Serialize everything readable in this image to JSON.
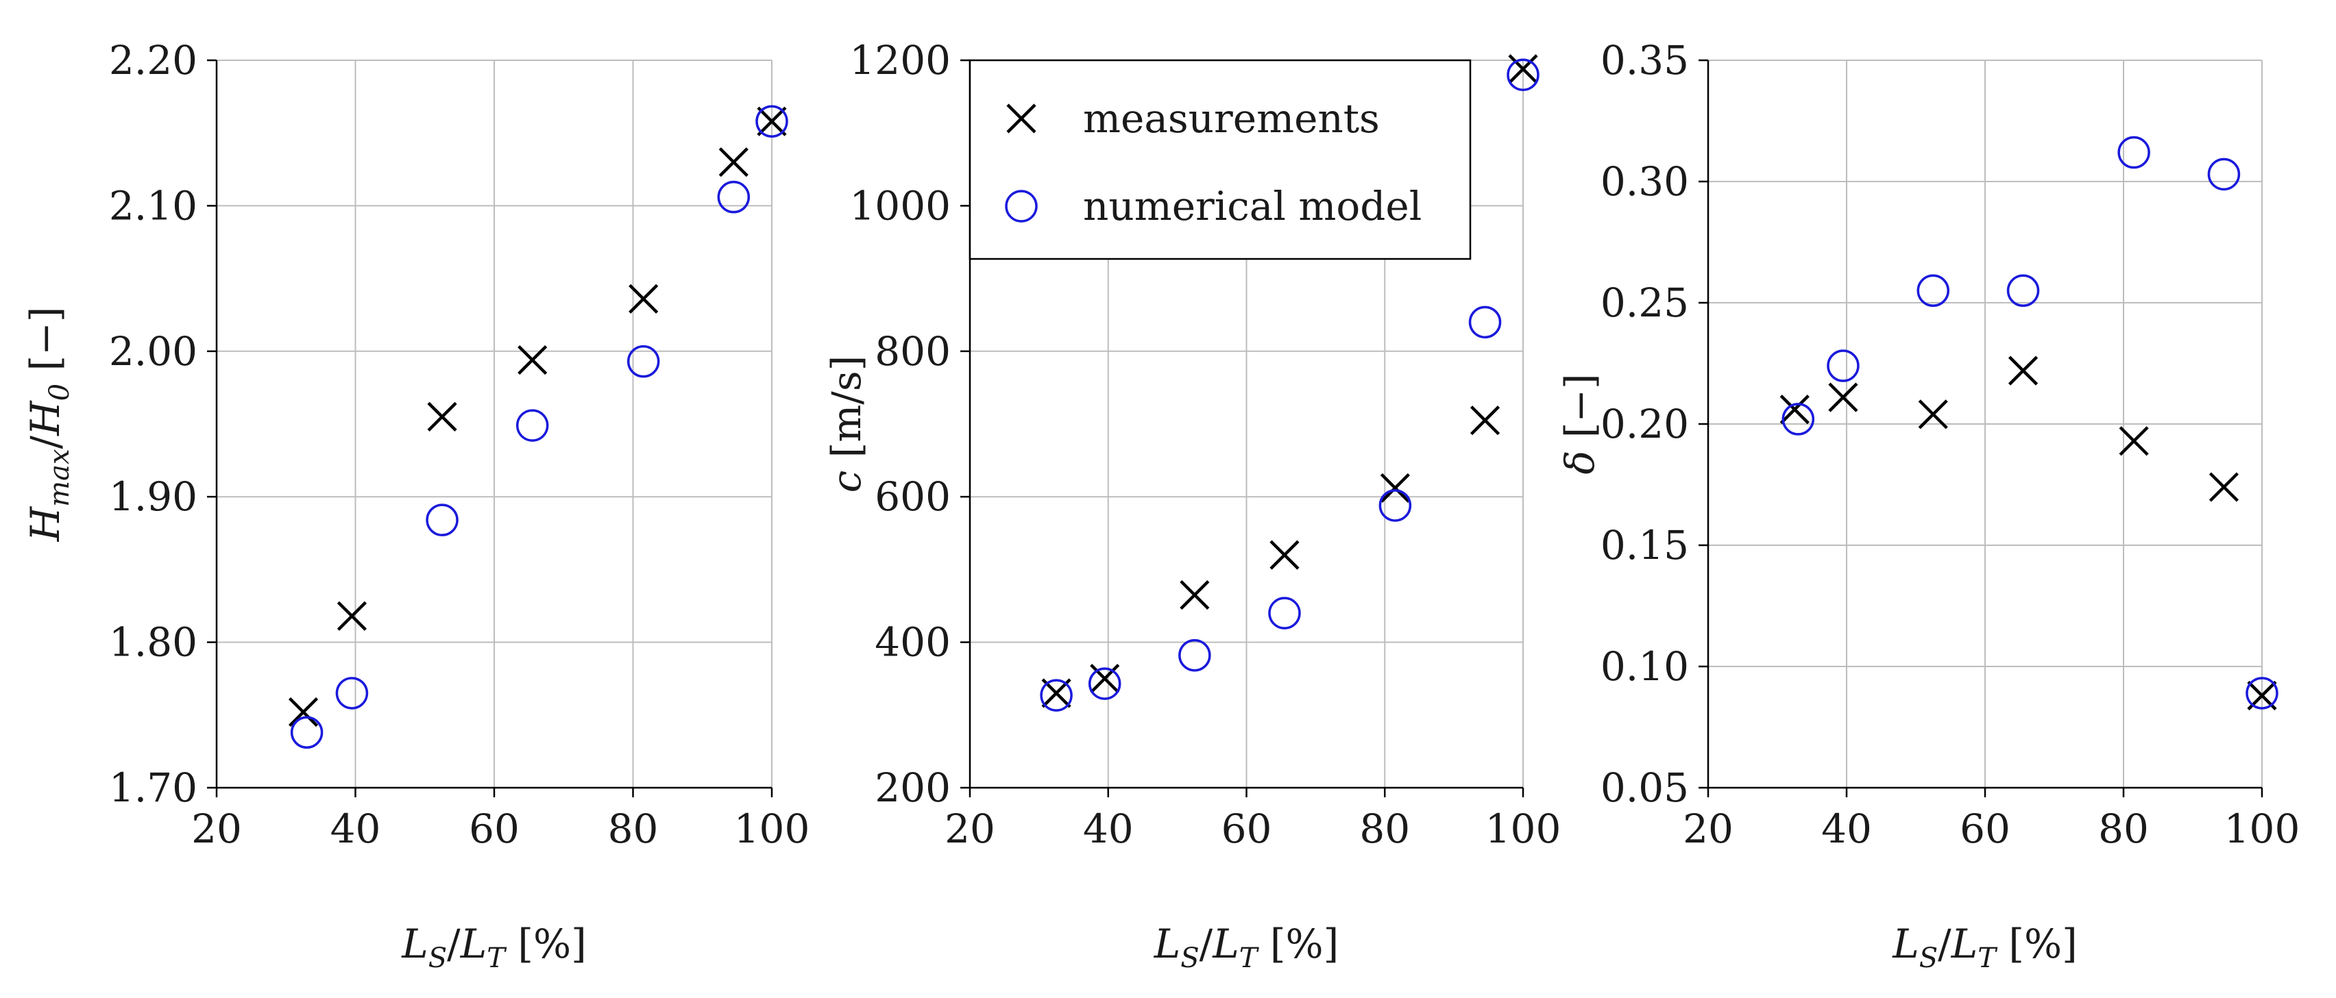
{
  "colors": {
    "measurements": "#000000",
    "numerical_model": "#1a1adc",
    "grid": "#bdbdbd",
    "axis": "#000000"
  },
  "legend": {
    "items": [
      {
        "label": "measurements",
        "marker": "cross-icon"
      },
      {
        "label": "numerical model",
        "marker": "circle-icon"
      }
    ],
    "placement": "top-left of middle panel"
  },
  "chart_data": [
    {
      "type": "scatter",
      "panel": "left",
      "title": "",
      "xlabel": {
        "main": "L",
        "sub1": "S",
        "mid": "/L",
        "sub2": "T",
        "unit": " [%]"
      },
      "ylabel": {
        "main": "H",
        "sub1": "max",
        "mid": "/H",
        "sub2": "0",
        "unit": " [−]"
      },
      "xlim": [
        20,
        100
      ],
      "ylim": [
        1.7,
        2.2
      ],
      "xticks": [
        20,
        40,
        60,
        80,
        100
      ],
      "xtick_labels": [
        "20",
        "40",
        "60",
        "80",
        "100"
      ],
      "yticks": [
        1.7,
        1.8,
        1.9,
        2.0,
        2.1,
        2.2
      ],
      "ytick_labels": [
        "1.70",
        "1.80",
        "1.90",
        "2.00",
        "2.10",
        "2.20"
      ],
      "grid": true,
      "series": [
        {
          "name": "measurements",
          "marker": "x",
          "x": [
            32.5,
            39.5,
            52.5,
            65.5,
            81.5,
            94.5,
            100
          ],
          "y": [
            1.752,
            1.818,
            1.955,
            1.994,
            2.036,
            2.13,
            2.158
          ]
        },
        {
          "name": "numerical model",
          "marker": "o",
          "x": [
            33,
            39.5,
            52.5,
            65.5,
            81.5,
            94.5,
            100
          ],
          "y": [
            1.738,
            1.765,
            1.884,
            1.949,
            1.993,
            2.106,
            2.158
          ]
        }
      ]
    },
    {
      "type": "scatter",
      "panel": "middle",
      "title": "",
      "xlabel": {
        "main": "L",
        "sub1": "S",
        "mid": "/L",
        "sub2": "T",
        "unit": " [%]"
      },
      "ylabel": {
        "main": "c",
        "sub1": "",
        "mid": "",
        "sub2": "",
        "unit": " [m/s]"
      },
      "xlim": [
        20,
        100
      ],
      "ylim": [
        200,
        1200
      ],
      "xticks": [
        20,
        40,
        60,
        80,
        100
      ],
      "xtick_labels": [
        "20",
        "40",
        "60",
        "80",
        "100"
      ],
      "yticks": [
        200,
        400,
        600,
        800,
        1000,
        1200
      ],
      "ytick_labels": [
        "200",
        "400",
        "600",
        "800",
        "1000",
        "1200"
      ],
      "grid": true,
      "series": [
        {
          "name": "measurements",
          "marker": "x",
          "x": [
            32.5,
            39.5,
            52.5,
            65.5,
            81.5,
            94.5,
            100
          ],
          "y": [
            330,
            350,
            465,
            520,
            612,
            705,
            1188
          ]
        },
        {
          "name": "numerical model",
          "marker": "o",
          "x": [
            32.5,
            39.5,
            52.5,
            65.5,
            81.5,
            94.5,
            100
          ],
          "y": [
            327,
            343,
            382,
            440,
            588,
            840,
            1180
          ]
        }
      ]
    },
    {
      "type": "scatter",
      "panel": "right",
      "title": "",
      "xlabel": {
        "main": "L",
        "sub1": "S",
        "mid": "/L",
        "sub2": "T",
        "unit": " [%]"
      },
      "ylabel": {
        "main": "δ",
        "sub1": "",
        "mid": "",
        "sub2": "",
        "unit": " [−]"
      },
      "xlim": [
        20,
        100
      ],
      "ylim": [
        0.05,
        0.35
      ],
      "xticks": [
        20,
        40,
        60,
        80,
        100
      ],
      "xtick_labels": [
        "20",
        "40",
        "60",
        "80",
        "100"
      ],
      "yticks": [
        0.05,
        0.1,
        0.15,
        0.2,
        0.25,
        0.3,
        0.35
      ],
      "ytick_labels": [
        "0.05",
        "0.10",
        "0.15",
        "0.20",
        "0.25",
        "0.30",
        "0.35"
      ],
      "grid": true,
      "series": [
        {
          "name": "measurements",
          "marker": "x",
          "x": [
            32.5,
            39.5,
            52.5,
            65.5,
            81.5,
            94.5,
            100
          ],
          "y": [
            0.206,
            0.211,
            0.204,
            0.222,
            0.193,
            0.174,
            0.088
          ]
        },
        {
          "name": "numerical model",
          "marker": "o",
          "x": [
            33,
            39.5,
            52.5,
            65.5,
            81.5,
            94.5,
            100
          ],
          "y": [
            0.202,
            0.224,
            0.255,
            0.255,
            0.312,
            0.303,
            0.089
          ]
        }
      ]
    }
  ]
}
